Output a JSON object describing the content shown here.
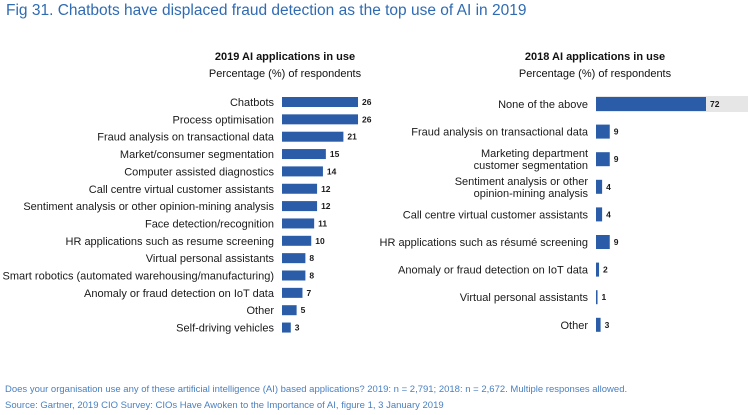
{
  "figure": {
    "title": "Fig 31. Chatbots have displaced fraud detection as the top use of AI in 2019",
    "footnote": "Does your organisation use any of these artificial intelligence (AI) based applications? 2019: n = 2,791; 2018: n = 2,672. Multiple responses allowed.",
    "source": "Source: Gartner, 2019 CIO Survey: CIOs Have Awoken to the Importance of AI, figure 1, 3 January 2019"
  },
  "colors": {
    "bar": "#2a5ca8",
    "title": "#2f6bb3",
    "footnote": "#4a80c0",
    "track": "#e6e6e6"
  },
  "chart_data": [
    {
      "type": "bar",
      "orientation": "horizontal",
      "title": "2019 AI applications in use",
      "subtitle": "Percentage (%) of respondents",
      "xlim": [
        0,
        72
      ],
      "categories": [
        "Chatbots",
        "Process optimisation",
        "Fraud analysis on transactional data",
        "Market/consumer segmentation",
        "Computer assisted diagnostics",
        "Call centre virtual customer assistants",
        "Sentiment analysis or other opinion-mining analysis",
        "Face detection/recognition",
        "HR applications such as resume screening",
        "Virtual personal assistants",
        "Smart robotics (automated warehousing/manufacturing)",
        "Anomaly or fraud detection on IoT data",
        "Other",
        "Self-driving vehicles"
      ],
      "values": [
        26,
        26,
        21,
        15,
        14,
        12,
        12,
        11,
        10,
        8,
        8,
        7,
        5,
        3
      ]
    },
    {
      "type": "bar",
      "orientation": "horizontal",
      "title": "2018 AI applications in use",
      "subtitle": "Percentage (%) of respondents",
      "xlim": [
        0,
        72
      ],
      "categories": [
        [
          "None of the above"
        ],
        [
          "Fraud analysis on transactional data"
        ],
        [
          "Marketing department",
          "customer segmentation"
        ],
        [
          "Sentiment analysis or other",
          "opinion-mining analysis"
        ],
        [
          "Call centre virtual customer assistants"
        ],
        [
          "HR applications such as résumé screening"
        ],
        [
          "Anomaly or fraud detection on IoT data"
        ],
        [
          "Virtual personal assistants"
        ],
        [
          "Other"
        ]
      ],
      "values": [
        72,
        9,
        9,
        4,
        4,
        9,
        2,
        1,
        3
      ]
    }
  ]
}
